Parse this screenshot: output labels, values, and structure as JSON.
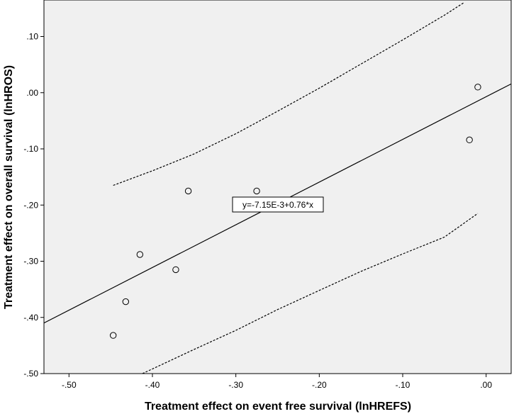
{
  "chart_data": {
    "type": "scatter",
    "title": "",
    "xlabel": "Treatment effect on event free survival (lnHREFS)",
    "ylabel": "Treatment effect on overall survival (lnHROS)",
    "xlim": [
      -0.53,
      0.03
    ],
    "ylim": [
      -0.5,
      0.165
    ],
    "x_ticks": [
      -0.5,
      -0.4,
      -0.3,
      -0.2,
      -0.1,
      0.0
    ],
    "x_tick_labels": [
      "-.50",
      "-.40",
      "-.30",
      "-.20",
      "-.10",
      ".00"
    ],
    "y_ticks": [
      -0.5,
      -0.4,
      -0.3,
      -0.2,
      -0.1,
      0.0,
      0.1
    ],
    "y_tick_labels": [
      "-.50",
      "-.40",
      "-.30",
      "-.20",
      "-.10",
      ".00",
      ".10"
    ],
    "grid": false,
    "background_color": "#f0f0f0",
    "points": [
      {
        "x": -0.447,
        "y": -0.432
      },
      {
        "x": -0.432,
        "y": -0.372
      },
      {
        "x": -0.415,
        "y": -0.288
      },
      {
        "x": -0.372,
        "y": -0.315
      },
      {
        "x": -0.357,
        "y": -0.175
      },
      {
        "x": -0.275,
        "y": -0.175
      },
      {
        "x": -0.02,
        "y": -0.084
      },
      {
        "x": -0.01,
        "y": 0.01
      }
    ],
    "fit_line": {
      "intercept": -0.00715,
      "slope": 0.76
    },
    "equation_label": "y=-7.15E-3+0.76*x",
    "ci_upper": [
      {
        "x": -0.447,
        "y": -0.165
      },
      {
        "x": -0.4,
        "y": -0.139
      },
      {
        "x": -0.35,
        "y": -0.109
      },
      {
        "x": -0.3,
        "y": -0.073
      },
      {
        "x": -0.25,
        "y": -0.033
      },
      {
        "x": -0.2,
        "y": 0.008
      },
      {
        "x": -0.15,
        "y": 0.051
      },
      {
        "x": -0.1,
        "y": 0.094
      },
      {
        "x": -0.05,
        "y": 0.138
      },
      {
        "x": -0.027,
        "y": 0.16
      }
    ],
    "ci_lower": [
      {
        "x": -0.412,
        "y": -0.5
      },
      {
        "x": -0.35,
        "y": -0.457
      },
      {
        "x": -0.3,
        "y": -0.423
      },
      {
        "x": -0.25,
        "y": -0.386
      },
      {
        "x": -0.2,
        "y": -0.352
      },
      {
        "x": -0.15,
        "y": -0.318
      },
      {
        "x": -0.1,
        "y": -0.287
      },
      {
        "x": -0.05,
        "y": -0.257
      },
      {
        "x": -0.01,
        "y": -0.215
      }
    ]
  }
}
